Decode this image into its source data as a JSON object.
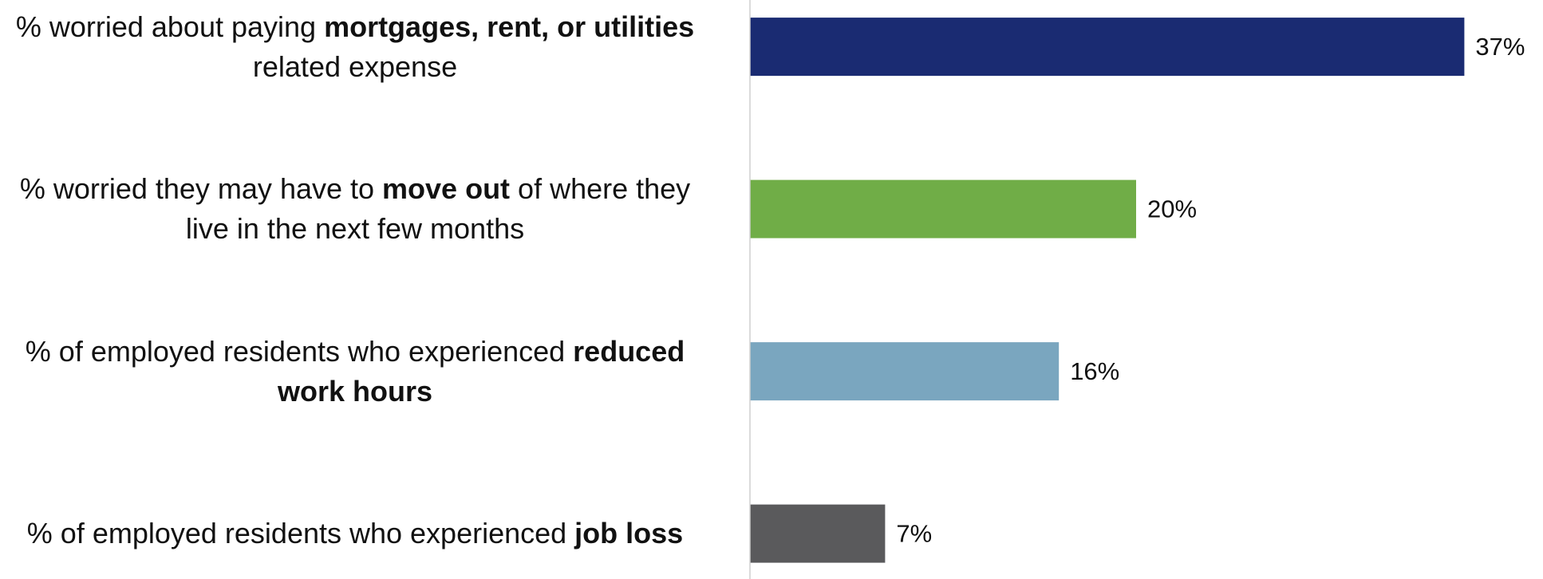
{
  "chart_data": {
    "type": "barh",
    "categories": [
      "% worried about paying mortgages, rent, or utilities related expense",
      "% worried they may have to move out of where they live in the next few months",
      "% of employed residents who experienced reduced work hours",
      "% of employed residents who experienced job loss"
    ],
    "emphasis": [
      "mortgages, rent, or utilities",
      "move out",
      "reduced work hours",
      "job loss"
    ],
    "values": [
      37,
      20,
      16,
      7
    ],
    "value_labels": [
      "37%",
      "20%",
      "16%",
      "7%"
    ],
    "colors": [
      "#1a2b72",
      "#70ad47",
      "#7aa6bf",
      "#5a5a5c"
    ],
    "xlim": [
      0,
      40
    ]
  }
}
